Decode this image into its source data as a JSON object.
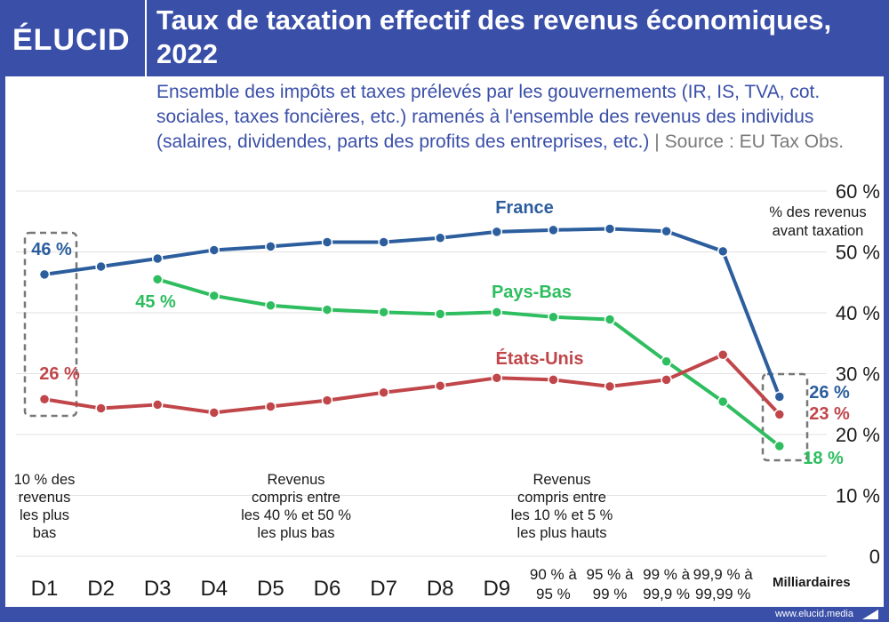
{
  "header": {
    "logo": "ÉLUCID",
    "title": "Taux de taxation effectif des revenus économiques, 2022",
    "subtitle": "Ensemble des impôts et taxes prélevés par les gouvernements (IR, IS, TVA, cot. sociales, taxes foncières, etc.) ramenés à l'ensemble des revenus des individus (salaires, dividendes, parts des profits des entreprises, etc.)",
    "separator": "|",
    "source": "Source : EU Tax Obs."
  },
  "footer": {
    "url": "www.elucid.media"
  },
  "chart_data": {
    "type": "line",
    "ylabel": "% des revenus avant taxation",
    "ylim": [
      0,
      60
    ],
    "y_ticks": [
      {
        "value": 0,
        "label": "0"
      },
      {
        "value": 10,
        "label": "10 %"
      },
      {
        "value": 20,
        "label": "20 %"
      },
      {
        "value": 30,
        "label": "30 %"
      },
      {
        "value": 40,
        "label": "40 %"
      },
      {
        "value": 50,
        "label": "50 %"
      },
      {
        "value": 60,
        "label": "60 %"
      }
    ],
    "categories": [
      "D1",
      "D2",
      "D3",
      "D4",
      "D5",
      "D6",
      "D7",
      "D8",
      "D9",
      "90 % à 95 %",
      "95 % à 99 %",
      "99 % à 99,9 %",
      "99,9 % à 99,99 %",
      "Milliardaires"
    ],
    "series": [
      {
        "name": "France",
        "color": "#2c5e9e",
        "values": [
          46.3,
          47.6,
          48.9,
          50.3,
          50.9,
          51.6,
          51.6,
          52.3,
          53.3,
          53.6,
          53.8,
          53.4,
          50.1,
          26.2
        ]
      },
      {
        "name": "Pays-Bas",
        "color": "#2ebd5f",
        "values": [
          null,
          null,
          45.5,
          42.8,
          41.2,
          40.5,
          40.1,
          39.8,
          40.1,
          39.3,
          38.9,
          32.0,
          25.4,
          18.1
        ]
      },
      {
        "name": "États-Unis",
        "color": "#c0464a",
        "values": [
          25.8,
          24.3,
          24.9,
          23.6,
          24.6,
          25.6,
          26.9,
          28.0,
          29.3,
          29.0,
          27.9,
          29.0,
          33.1,
          23.3
        ]
      }
    ],
    "value_labels": [
      {
        "series": "France",
        "text": "46 %"
      },
      {
        "series": "Pays-Bas",
        "text": "45 %"
      },
      {
        "series": "États-Unis",
        "text": "26 %"
      },
      {
        "series": "France",
        "text": "26 %"
      },
      {
        "series": "États-Unis",
        "text": "23 %"
      },
      {
        "series": "Pays-Bas",
        "text": "18 %"
      }
    ],
    "annotations": [
      {
        "lines": [
          "10 % des",
          "revenus",
          "les plus",
          "bas"
        ]
      },
      {
        "lines": [
          "Revenus",
          "compris entre",
          "les 40 % et 50 %",
          "les plus bas"
        ]
      },
      {
        "lines": [
          "Revenus",
          "compris entre",
          "les 10 % et 5 %",
          "les plus hauts"
        ]
      }
    ],
    "grid": true
  }
}
